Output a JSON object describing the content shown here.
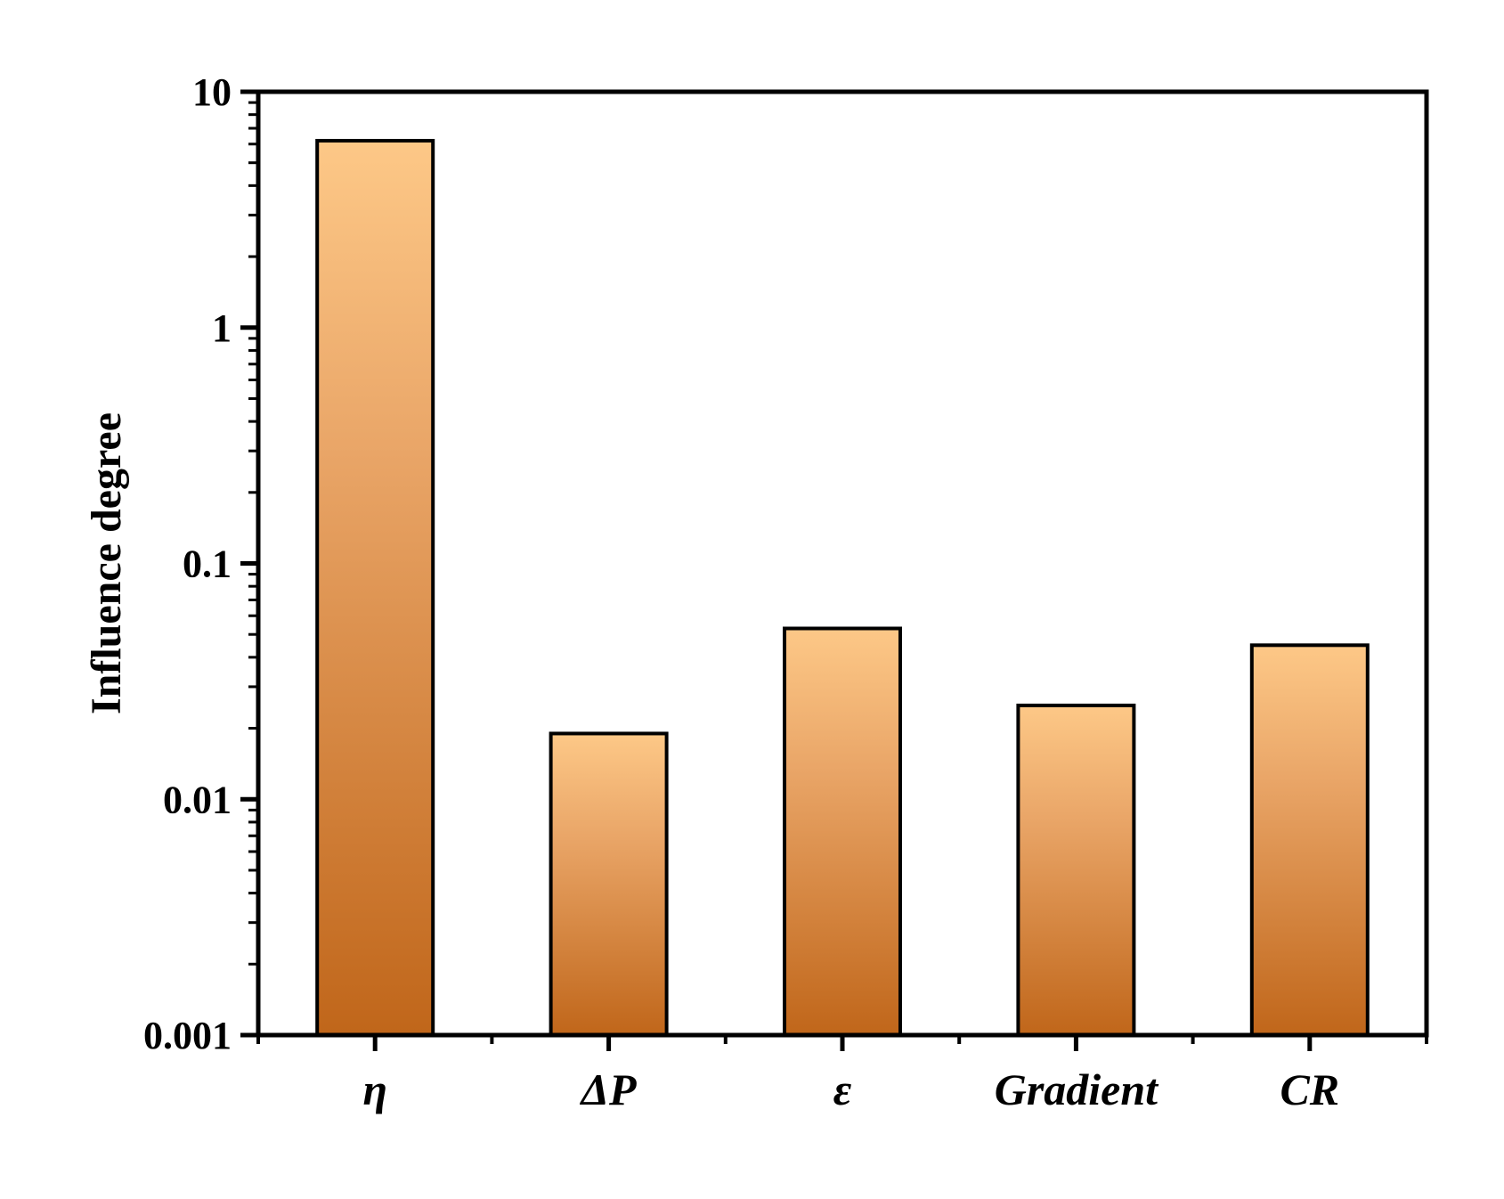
{
  "chart_data": {
    "type": "bar",
    "title": "",
    "xlabel": "",
    "ylabel": "Influence degree",
    "yscale": "log",
    "ylim": [
      0.001,
      10
    ],
    "yticks": [
      {
        "value": 0.001,
        "label": "0.001"
      },
      {
        "value": 0.01,
        "label": "0.01"
      },
      {
        "value": 0.1,
        "label": "0.1"
      },
      {
        "value": 1,
        "label": "1"
      },
      {
        "value": 10,
        "label": "10"
      }
    ],
    "categories": [
      "η",
      "ΔP",
      "ε",
      "Gradient",
      "CR"
    ],
    "values": [
      6.2,
      0.019,
      0.053,
      0.025,
      0.045
    ],
    "grid": false,
    "legend": "none",
    "bar_color_top": "#fdc887",
    "bar_color_bottom": "#c0661a",
    "bar_outline": "#000000"
  }
}
